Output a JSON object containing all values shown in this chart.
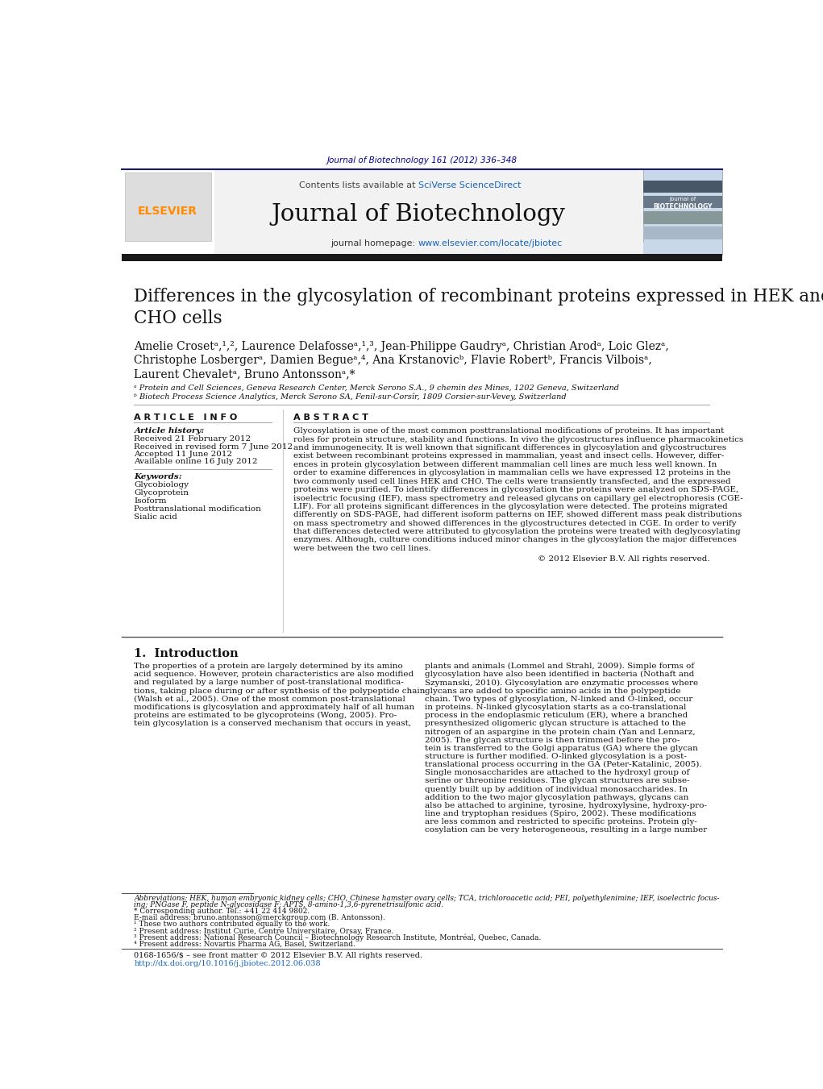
{
  "bg_color": "#ffffff",
  "header_journal_text": "Journal of Biotechnology 161 (2012) 336–348",
  "header_journal_color": "#00008B",
  "header_bg_color": "#f0f0f0",
  "journal_title": "Journal of Biotechnology",
  "homepage_link_color": "#0000CD",
  "elsevier_color": "#FF8C00",
  "affiliation_a": "ᵃ Protein and Cell Sciences, Geneva Research Center, Merck Serono S.A., 9 chemin des Mines, 1202 Geneva, Switzerland",
  "affiliation_b": "ᵇ Biotech Process Science Analytics, Merck Serono SA, Fenil-sur-Corsîr, 1809 Corsier-sur-Vevey, Switzerland",
  "received1": "Received 21 February 2012",
  "received2": "Received in revised form 7 June 2012",
  "accepted": "Accepted 11 June 2012",
  "available": "Available online 16 July 2012",
  "keywords": [
    "Glycobiology",
    "Glycoprotein",
    "Isoform",
    "Posttranslational modification",
    "Sialic acid"
  ],
  "abstract_text": "Glycosylation is one of the most common posttranslational modifications of proteins. It has important\nroles for protein structure, stability and functions. In vivo the glycostructures influence pharmacokinetics\nand immunogenecity. It is well known that significant differences in glycosylation and glycostructures\nexist between recombinant proteins expressed in mammalian, yeast and insect cells. However, differ-\nences in protein glycosylation between different mammalian cell lines are much less well known. In\norder to examine differences in glycosylation in mammalian cells we have expressed 12 proteins in the\ntwo commonly used cell lines HEK and CHO. The cells were transiently transfected, and the expressed\nproteins were purified. To identify differences in glycosylation the proteins were analyzed on SDS-PAGE,\nisoelectric focusing (IEF), mass spectrometry and released glycans on capillary gel electrophoresis (CGE-\nLIF). For all proteins significant differences in the glycosylation were detected. The proteins migrated\ndifferently on SDS-PAGE, had different isoform patterns on IEF, showed different mass peak distributions\non mass spectrometry and showed differences in the glycostructures detected in CGE. In order to verify\nthat differences detected were attributed to glycosylation the proteins were treated with deglycosylating\nenzymes. Although, culture conditions induced minor changes in the glycosylation the major differences\nwere between the two cell lines.",
  "copyright_text": "© 2012 Elsevier B.V. All rights reserved.",
  "intro_col1": "The properties of a protein are largely determined by its amino\nacid sequence. However, protein characteristics are also modified\nand regulated by a large number of post-translational modifica-\ntions, taking place during or after synthesis of the polypeptide chain\n(Walsh et al., 2005). One of the most common post-translational\nmodifications is glycosylation and approximately half of all human\nproteins are estimated to be glycoproteins (Wong, 2005). Pro-\ntein glycosylation is a conserved mechanism that occurs in yeast,",
  "intro_col2": "plants and animals (Lommel and Strahl, 2009). Simple forms of\nglycosylation have also been identified in bacteria (Nothaft and\nSzymanski, 2010). Glycosylation are enzymatic processes where\nglycans are added to specific amino acids in the polypeptide\nchain. Two types of glycosylation, N-linked and O-linked, occur\nin proteins. N-linked glycosylation starts as a co-translational\nprocess in the endoplasmic reticulum (ER), where a branched\npresynthesized oligomeric glycan structure is attached to the\nnitrogen of an aspargine in the protein chain (Yan and Lennarz,\n2005). The glycan structure is then trimmed before the pro-\ntein is transferred to the Golgi apparatus (GA) where the glycan\nstructure is further modified. O-linked glycosylation is a post-\ntranslational process occurring in the GA (Peter-Katalinic, 2005).\nSingle monosaccharides are attached to the hydroxyl group of\nserine or threonine residues. The glycan structures are subse-\nquently built up by addition of individual monosaccharides. In\naddition to the two major glycosylation pathways, glycans can\nalso be attached to arginine, tyrosine, hydroxylysine, hydroxy-pro-\nline and tryptophan residues (Spiro, 2002). These modifications\nare less common and restricted to specific proteins. Protein gly-\ncosylation can be very heterogeneous, resulting in a large number",
  "footnote_abbrev": "Abbreviations: HEK, human embryonic kidney cells; CHO, Chinese hamster ovary cells; TCA, trichloroacetic acid; PEI, polyethylenimine; IEF, isoelectric focus-",
  "footnote_abbrev2": "ing; PNGase F, peptide N-glycosidase F; APTS, 8-amino-1,3,6-pyrenetrisulfonic acid.",
  "footnote_corr": "* Corresponding author. Tel.: +41 22 414 9802.",
  "footnote_email": "E-mail address: bruno.antonsson@merckgroup.com (B. Antonsson).",
  "footnote_1": "¹ These two authors contributed equally to the work.",
  "footnote_2": "² Present address: Institut Curie, Centre Universitaire, Orsay, France.",
  "footnote_3": "³ Present address: National Research Council – Biotechnology Research Institute, Montréal, Quebec, Canada.",
  "footnote_4": "⁴ Present address: Novartis Pharma AG, Basel, Switzerland.",
  "footer_issn": "0168-1656/$ – see front matter © 2012 Elsevier B.V. All rights reserved.",
  "footer_doi": "http://dx.doi.org/10.1016/j.jbiotec.2012.06.038"
}
